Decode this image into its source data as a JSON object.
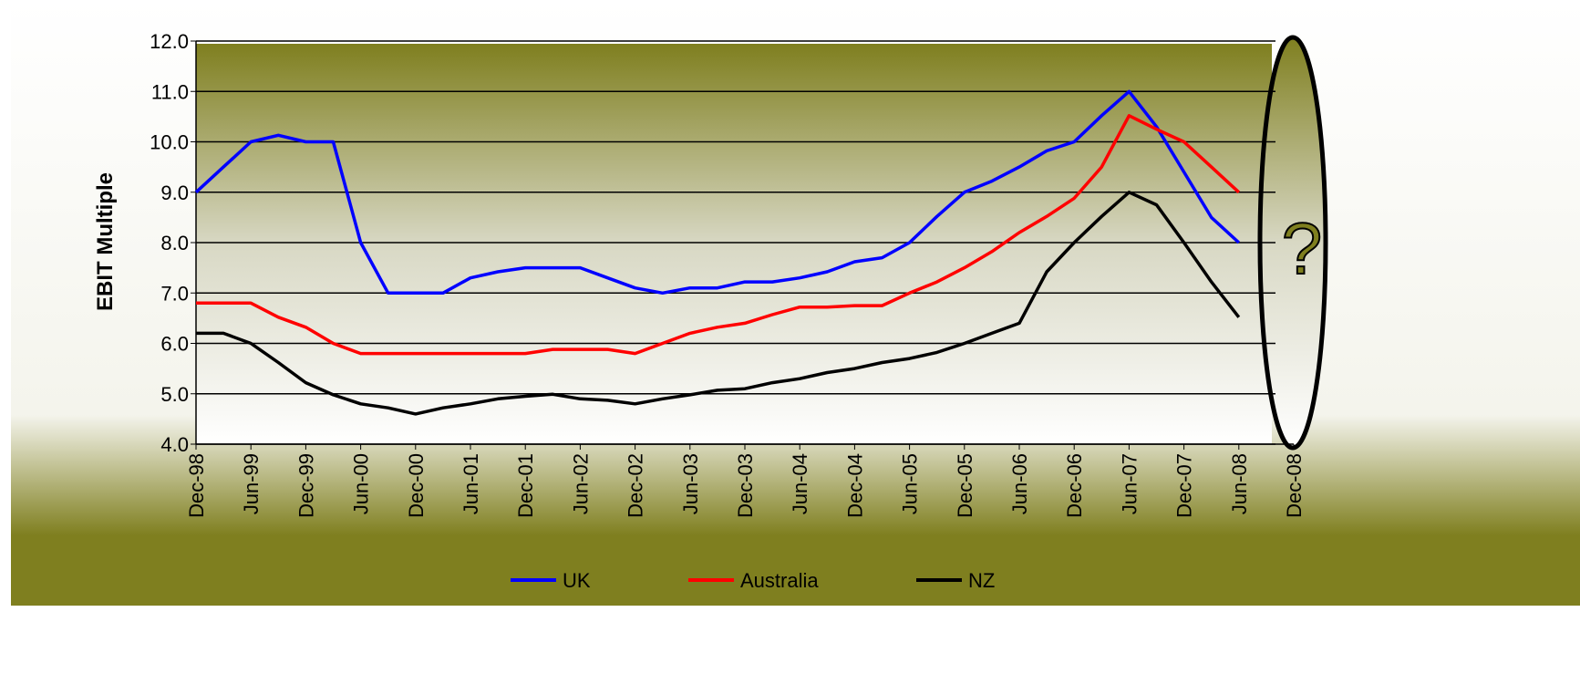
{
  "chart_data": {
    "type": "line",
    "y_label": "EBIT Multiple",
    "annotation": "?",
    "categories": [
      "Dec-98",
      null,
      "Jun-99",
      null,
      "Dec-99",
      null,
      "Jun-00",
      null,
      "Dec-00",
      null,
      "Jun-01",
      null,
      "Dec-01",
      null,
      "Jun-02",
      null,
      "Dec-02",
      null,
      "Jun-03",
      null,
      "Dec-03",
      null,
      "Jun-04",
      null,
      "Dec-04",
      null,
      "Jun-05",
      null,
      "Dec-05",
      null,
      "Jun-06",
      null,
      "Dec-06",
      null,
      "Jun-07",
      null,
      "Dec-07",
      null,
      "Jun-08",
      null,
      "Dec-08"
    ],
    "series": [
      {
        "name": "UK",
        "color": "#0000ff",
        "values": [
          9.0,
          9.5,
          10.0,
          10.13,
          10.0,
          10.0,
          8.0,
          7.0,
          7.0,
          7.0,
          7.3,
          7.42,
          7.5,
          7.5,
          7.5,
          7.3,
          7.1,
          7.0,
          7.1,
          7.1,
          7.22,
          7.22,
          7.3,
          7.42,
          7.62,
          7.7,
          8.0,
          8.52,
          9.0,
          9.22,
          9.5,
          9.82,
          10.0,
          10.52,
          11.0,
          10.3,
          9.4,
          8.5,
          8.0,
          null,
          null
        ]
      },
      {
        "name": "Australia",
        "color": "#ff0000",
        "values": [
          6.8,
          6.8,
          6.8,
          6.52,
          6.32,
          6.0,
          5.8,
          5.8,
          5.8,
          5.8,
          5.8,
          5.8,
          5.8,
          5.88,
          5.88,
          5.88,
          5.8,
          6.0,
          6.2,
          6.32,
          6.4,
          6.57,
          6.72,
          6.72,
          6.75,
          6.75,
          7.0,
          7.22,
          7.5,
          7.82,
          8.2,
          8.52,
          8.88,
          9.5,
          10.52,
          10.25,
          10.0,
          9.5,
          9.0,
          null,
          null
        ]
      },
      {
        "name": "NZ",
        "color": "#000000",
        "values": [
          6.2,
          6.2,
          6.0,
          5.62,
          5.22,
          4.98,
          4.8,
          4.72,
          4.6,
          4.72,
          4.8,
          4.9,
          4.95,
          4.99,
          4.9,
          4.87,
          4.8,
          4.9,
          4.98,
          5.07,
          5.1,
          5.22,
          5.3,
          5.42,
          5.5,
          5.62,
          5.7,
          5.82,
          6.0,
          6.2,
          6.4,
          7.42,
          8.0,
          8.52,
          9.0,
          8.75,
          8.0,
          7.22,
          6.52,
          null,
          null
        ]
      }
    ],
    "ylim": [
      4,
      12
    ],
    "yticks": [
      {
        "value": 4,
        "label": "4.0"
      },
      {
        "value": 5,
        "label": "5.0"
      },
      {
        "value": 6,
        "label": "6.0"
      },
      {
        "value": 7,
        "label": "7.0"
      },
      {
        "value": 8,
        "label": "8.0"
      },
      {
        "value": 9,
        "label": "9.0"
      },
      {
        "value": 10,
        "label": "10.0"
      },
      {
        "value": 11,
        "label": "11.0"
      },
      {
        "value": 12,
        "label": "12.0"
      }
    ],
    "grid": true,
    "legend": "bottom"
  }
}
